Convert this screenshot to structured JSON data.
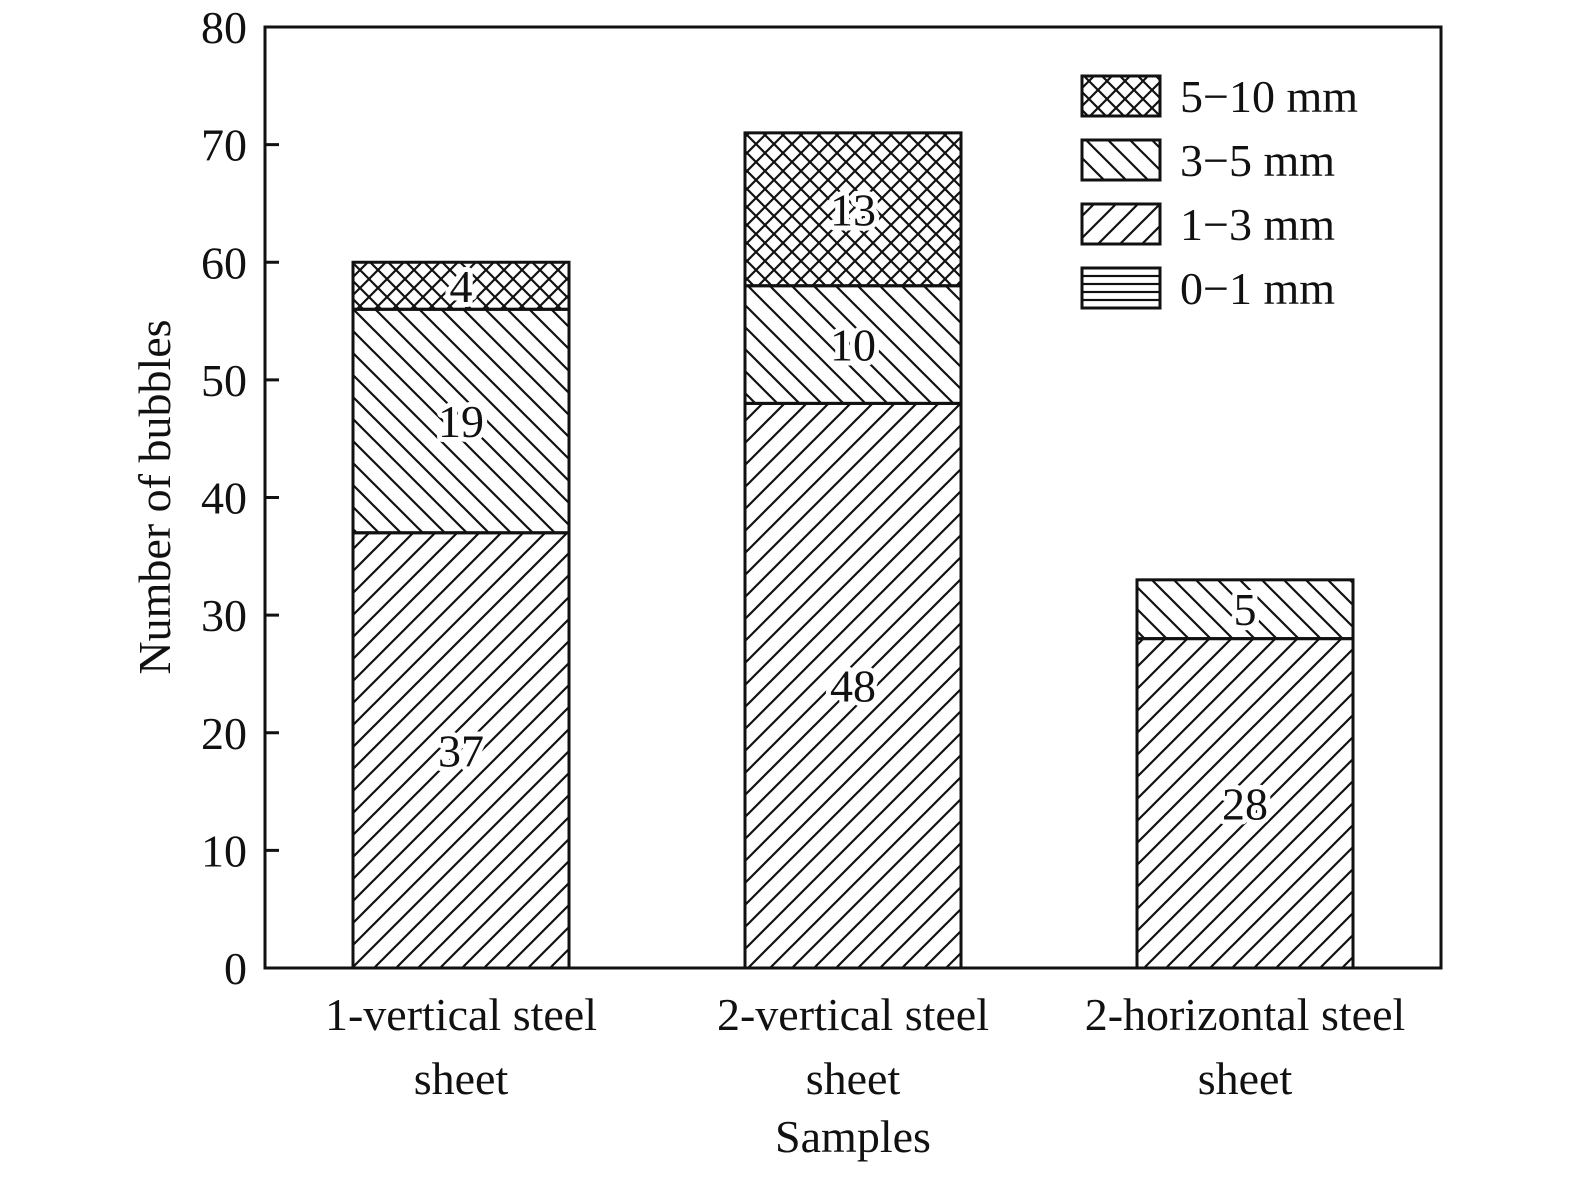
{
  "chart_data": {
    "type": "bar",
    "stacked": true,
    "categories": [
      [
        "1-vertical steel",
        "sheet"
      ],
      [
        "2-vertical steel",
        "sheet"
      ],
      [
        "2-horizontal steel",
        "sheet"
      ]
    ],
    "series": [
      {
        "name": "0−1 mm",
        "pattern": "horizontal",
        "values": [
          0,
          0,
          0
        ]
      },
      {
        "name": "1−3 mm",
        "pattern": "diagonal-up",
        "values": [
          37,
          48,
          28
        ]
      },
      {
        "name": "3−5 mm",
        "pattern": "diagonal-down",
        "values": [
          19,
          10,
          5
        ]
      },
      {
        "name": "5−10 mm",
        "pattern": "crosshatch",
        "values": [
          4,
          13,
          0
        ]
      }
    ],
    "title": "",
    "xlabel": "Samples",
    "ylabel": "Number of bubbles",
    "ylim": [
      0,
      80
    ],
    "yticks": [
      0,
      10,
      20,
      30,
      40,
      50,
      60,
      70,
      80
    ],
    "legend": "top-right",
    "grid": false,
    "colors": {
      "line": "#111111",
      "background": "#ffffff"
    }
  }
}
